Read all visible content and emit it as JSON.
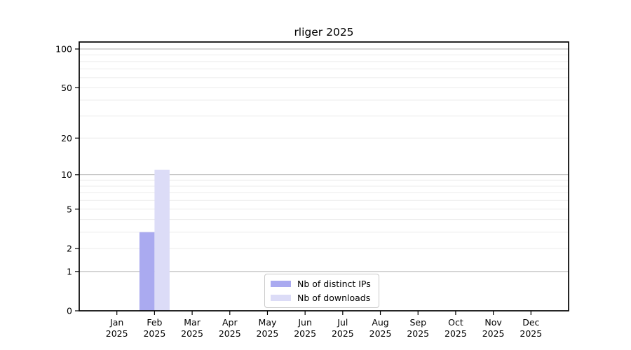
{
  "page": {
    "background": "#ffffff"
  },
  "chart_data": {
    "type": "bar",
    "title": "rliger 2025",
    "categories": [
      "Jan",
      "Feb",
      "Mar",
      "Apr",
      "May",
      "Jun",
      "Jul",
      "Aug",
      "Sep",
      "Oct",
      "Nov",
      "Dec"
    ],
    "x_year_label": "2025",
    "series": [
      {
        "name": "Nb of distinct IPs",
        "color": "#aaaaf0",
        "values": [
          0,
          3,
          0,
          0,
          0,
          0,
          0,
          0,
          0,
          0,
          0,
          0
        ]
      },
      {
        "name": "Nb of downloads",
        "color": "#dcdcf7",
        "values": [
          0,
          11,
          0,
          0,
          0,
          0,
          0,
          0,
          0,
          0,
          0,
          0
        ]
      }
    ],
    "xlabel": "",
    "ylabel": "",
    "y_scale": "log1p",
    "ylim": [
      0,
      113
    ],
    "y_ticks": [
      0,
      1,
      2,
      5,
      10,
      20,
      50,
      100
    ],
    "y_major_gridlines": [
      1,
      10,
      100
    ],
    "y_minor_gridlines": [
      2,
      3,
      4,
      5,
      6,
      7,
      8,
      9,
      20,
      30,
      40,
      50,
      60,
      70,
      80,
      90
    ],
    "grid": true,
    "legend_position": "lower center"
  },
  "colors": {
    "axis": "#000000",
    "major_grid": "#b0b0b0",
    "minor_grid": "#ebebeb",
    "legend_border": "#c9c9c9",
    "bar_distinct_ips": "#aaaaf0",
    "bar_downloads": "#dcdcf7"
  }
}
